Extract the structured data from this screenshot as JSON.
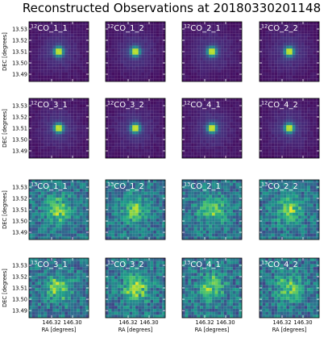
{
  "title": "Reconstructed Observations at 20180330201148",
  "ylabel": "DEC [degrees]",
  "xlabel": "RA [degrees]",
  "colormap": {
    "name": "viridis",
    "stops": [
      "#440154",
      "#482878",
      "#3e4989",
      "#31688e",
      "#26828e",
      "#1f9e89",
      "#35b779",
      "#6ece58",
      "#b5de2b",
      "#fde725"
    ]
  },
  "chart_data": {
    "type": "heatmap",
    "grid": {
      "rows": 4,
      "cols": 4
    },
    "x_ticks": [
      "146.32",
      "146.30"
    ],
    "y_ticks": [
      "13.53",
      "13.52",
      "13.51",
      "13.50",
      "13.49"
    ],
    "panels": [
      {
        "isotope": "12",
        "label": "CO_1_1",
        "pattern": "point",
        "background": 0.05,
        "peak": 0.95,
        "noise": 0.04
      },
      {
        "isotope": "12",
        "label": "CO_1_2",
        "pattern": "point",
        "background": 0.05,
        "peak": 0.95,
        "noise": 0.04
      },
      {
        "isotope": "12",
        "label": "CO_2_1",
        "pattern": "point",
        "background": 0.05,
        "peak": 0.95,
        "noise": 0.04
      },
      {
        "isotope": "12",
        "label": "CO_2_2",
        "pattern": "point",
        "background": 0.05,
        "peak": 0.95,
        "noise": 0.04
      },
      {
        "isotope": "12",
        "label": "CO_3_1",
        "pattern": "point",
        "background": 0.05,
        "peak": 0.95,
        "noise": 0.04
      },
      {
        "isotope": "12",
        "label": "CO_3_2",
        "pattern": "point",
        "background": 0.05,
        "peak": 0.95,
        "noise": 0.04
      },
      {
        "isotope": "12",
        "label": "CO_4_1",
        "pattern": "point",
        "background": 0.05,
        "peak": 0.95,
        "noise": 0.04
      },
      {
        "isotope": "12",
        "label": "CO_4_2",
        "pattern": "point",
        "background": 0.05,
        "peak": 0.95,
        "noise": 0.04
      },
      {
        "isotope": "13",
        "label": "CO_1_1",
        "pattern": "diffuse",
        "background": 0.38,
        "peak": 0.85,
        "noise": 0.16
      },
      {
        "isotope": "13",
        "label": "CO_1_2",
        "pattern": "diffuse",
        "background": 0.38,
        "peak": 0.85,
        "noise": 0.16
      },
      {
        "isotope": "13",
        "label": "CO_2_1",
        "pattern": "diffuse",
        "background": 0.38,
        "peak": 0.85,
        "noise": 0.16
      },
      {
        "isotope": "13",
        "label": "CO_2_2",
        "pattern": "diffuse",
        "background": 0.38,
        "peak": 0.85,
        "noise": 0.16
      },
      {
        "isotope": "13",
        "label": "CO_3_1",
        "pattern": "diffuse",
        "background": 0.38,
        "peak": 0.85,
        "noise": 0.18
      },
      {
        "isotope": "13",
        "label": "CO_3_2",
        "pattern": "diffuse",
        "background": 0.38,
        "peak": 0.9,
        "noise": 0.18
      },
      {
        "isotope": "13",
        "label": "CO_4_1",
        "pattern": "diffuse",
        "background": 0.38,
        "peak": 0.85,
        "noise": 0.18
      },
      {
        "isotope": "13",
        "label": "CO_4_2",
        "pattern": "diffuse",
        "background": 0.38,
        "peak": 0.85,
        "noise": 0.18
      }
    ]
  }
}
